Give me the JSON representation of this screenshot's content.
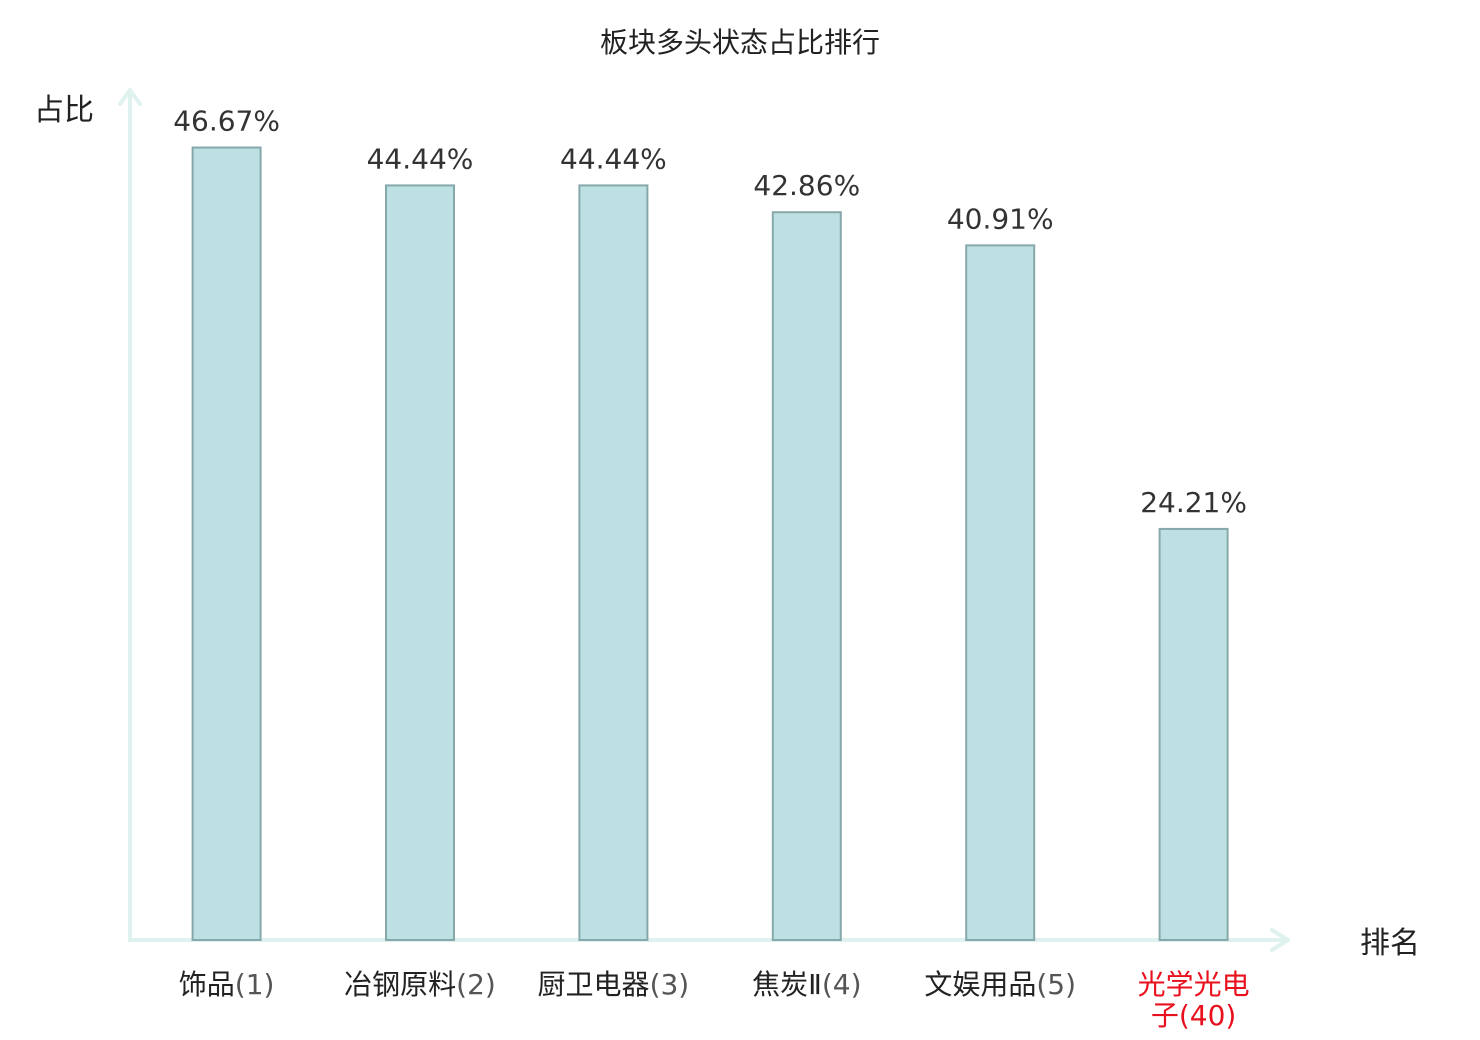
{
  "chart_data": {
    "type": "bar",
    "title": "板块多头状态占比排行",
    "ylabel": "占比",
    "xlabel": "排名",
    "ylim": [
      0,
      50
    ],
    "grid": false,
    "legend": "none",
    "categories": [
      {
        "name": "饰品",
        "rank": "(1)",
        "highlight": false
      },
      {
        "name": "冶钢原料",
        "rank": "(2)",
        "highlight": false
      },
      {
        "name": "厨卫电器",
        "rank": "(3)",
        "highlight": false
      },
      {
        "name": "焦炭Ⅱ",
        "rank": "(4)",
        "highlight": false
      },
      {
        "name": "文娱用品",
        "rank": "(5)",
        "highlight": false
      },
      {
        "name": "光学光电子",
        "rank": "(40)",
        "highlight": true
      }
    ],
    "values": [
      46.67,
      44.44,
      44.44,
      42.86,
      40.91,
      24.21
    ],
    "value_labels": [
      "46.67%",
      "44.44%",
      "44.44%",
      "42.86%",
      "40.91%",
      "24.21%"
    ],
    "colors": {
      "bar_fill": "#bde0e3",
      "bar_stroke": "#86a8aa",
      "axis": "#dff2ef",
      "highlight_text": "#e8101c",
      "text": "#222222",
      "rank_text": "#555555"
    }
  }
}
